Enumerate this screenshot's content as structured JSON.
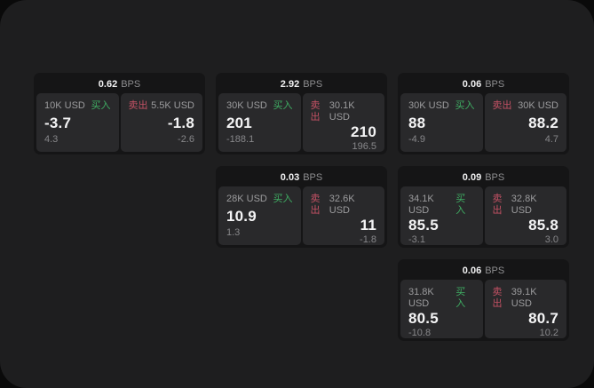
{
  "labels": {
    "bps_unit": "BPS",
    "buy": "买入",
    "sell": "卖出"
  },
  "colors": {
    "buy_green": "#3fae63",
    "sell_red": "#c45164",
    "outer_bg": "#0a0a0a",
    "panel_bg": "#1e1e1f",
    "card_bg": "#151516",
    "tile_bg": "#29292b"
  },
  "cards": [
    {
      "col": 1,
      "row": 1,
      "bps": "0.62",
      "buy": {
        "size": "10K USD",
        "price": "-3.7",
        "delta": "4.3"
      },
      "sell": {
        "size": "5.5K USD",
        "price": "-1.8",
        "delta": "-2.6"
      }
    },
    {
      "col": 2,
      "row": 1,
      "bps": "2.92",
      "buy": {
        "size": "30K USD",
        "price": "201",
        "delta": "-188.1"
      },
      "sell": {
        "size": "30.1K USD",
        "price": "210",
        "delta": "196.5"
      }
    },
    {
      "col": 3,
      "row": 1,
      "bps": "0.06",
      "buy": {
        "size": "30K USD",
        "price": "88",
        "delta": "-4.9"
      },
      "sell": {
        "size": "30K USD",
        "price": "88.2",
        "delta": "4.7"
      }
    },
    {
      "col": 2,
      "row": 2,
      "bps": "0.03",
      "buy": {
        "size": "28K USD",
        "price": "10.9",
        "delta": "1.3"
      },
      "sell": {
        "size": "32.6K USD",
        "price": "11",
        "delta": "-1.8"
      }
    },
    {
      "col": 3,
      "row": 2,
      "bps": "0.09",
      "buy": {
        "size": "34.1K USD",
        "price": "85.5",
        "delta": "-3.1"
      },
      "sell": {
        "size": "32.8K USD",
        "price": "85.8",
        "delta": "3.0"
      }
    },
    {
      "col": 3,
      "row": 3,
      "bps": "0.06",
      "buy": {
        "size": "31.8K USD",
        "price": "80.5",
        "delta": "-10.8"
      },
      "sell": {
        "size": "39.1K USD",
        "price": "80.7",
        "delta": "10.2"
      }
    }
  ]
}
